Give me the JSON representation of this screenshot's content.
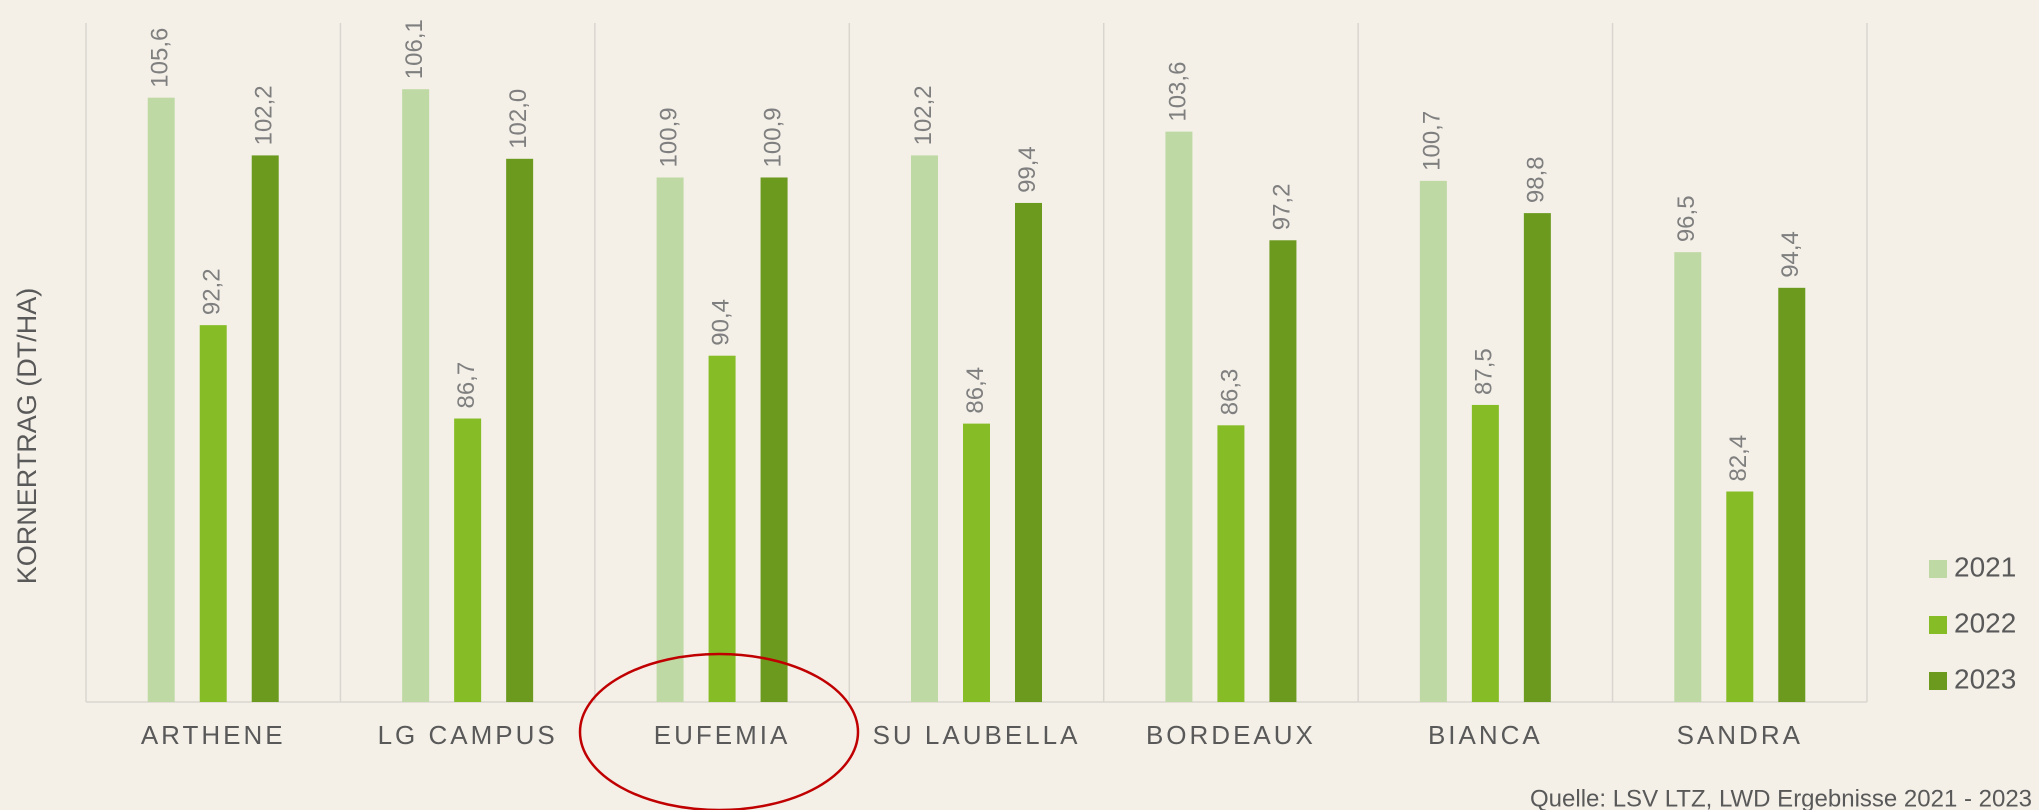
{
  "chart_data": {
    "type": "bar",
    "y_label": "KORNERTRAG (DT/HA)",
    "source": "Quelle: LSV LTZ, LWD Ergebnisse 2021 - 2023",
    "categories": [
      "ARTHENE",
      "LG CAMPUS",
      "EUFEMIA",
      "SU LAUBELLA",
      "BORDEAUX",
      "BIANCA",
      "SANDRA"
    ],
    "series": [
      {
        "name": "2021",
        "color": "#bfd9a5",
        "values": [
          105.6,
          106.1,
          100.9,
          102.2,
          103.6,
          100.7,
          96.5
        ],
        "value_labels": [
          "105,6",
          "106,1",
          "100,9",
          "102,2",
          "103,6",
          "100,7",
          "96,5"
        ]
      },
      {
        "name": "2022",
        "color": "#86bc25",
        "values": [
          92.2,
          86.7,
          90.4,
          86.4,
          86.3,
          87.5,
          82.4
        ],
        "value_labels": [
          "92,2",
          "86,7",
          "90,4",
          "86,4",
          "86,3",
          "87,5",
          "82,4"
        ]
      },
      {
        "name": "2023",
        "color": "#6b9a1f",
        "values": [
          102.2,
          102.0,
          100.9,
          99.4,
          97.2,
          98.8,
          94.4
        ],
        "value_labels": [
          "102,2",
          "102,0",
          "100,9",
          "99,4",
          "97,2",
          "98,8",
          "94,4"
        ]
      }
    ],
    "ylim": [
      70,
      110
    ],
    "legend": "right"
  }
}
